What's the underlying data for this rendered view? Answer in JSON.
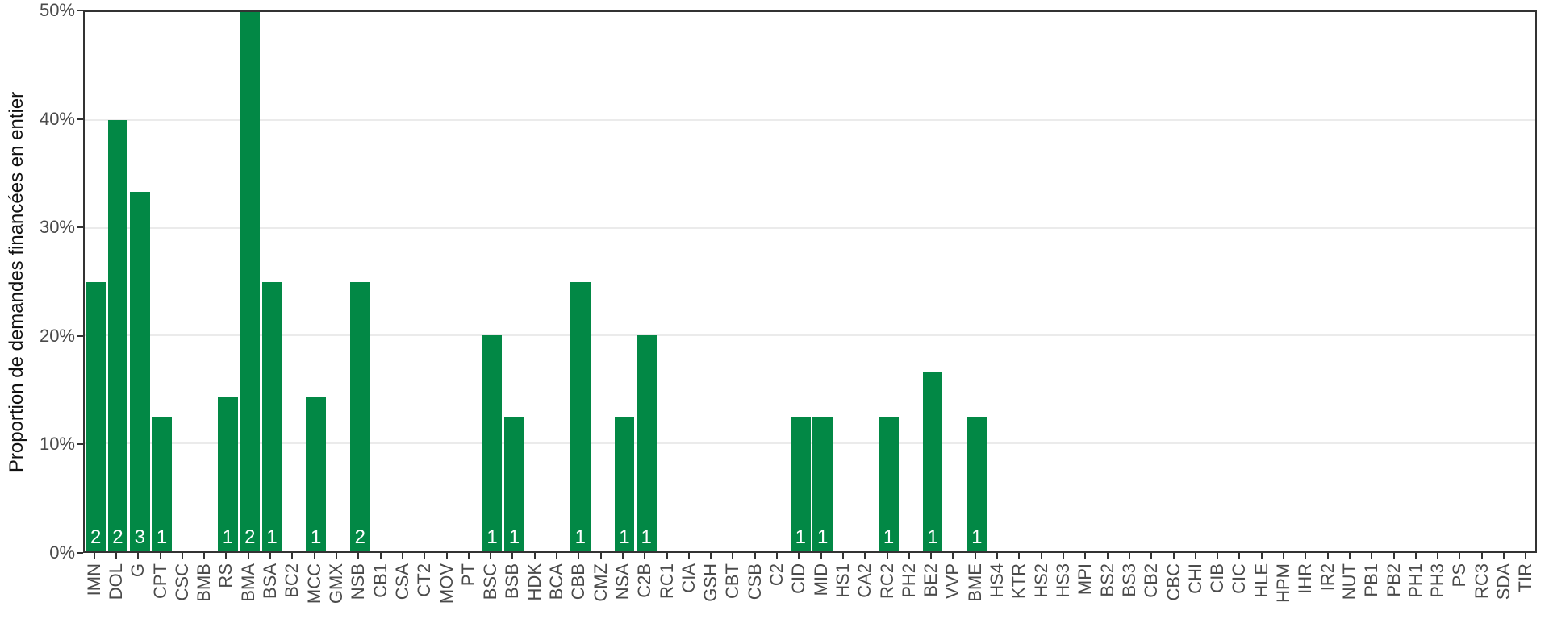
{
  "chart_data": {
    "type": "bar",
    "title": "",
    "xlabel": "",
    "ylabel": "Proportion de demandes financées en entier",
    "ylim": [
      0,
      50
    ],
    "y_tick_values": [
      0,
      10,
      20,
      30,
      40,
      50
    ],
    "y_tick_labels": [
      "0%",
      "10%",
      "20%",
      "30%",
      "40%",
      "50%"
    ],
    "grid": "horizontal-major-only",
    "legend_position": "none",
    "bar_color": "#028845",
    "categories": [
      "IMN",
      "DOL",
      "G",
      "CPT",
      "CSC",
      "BMB",
      "RS",
      "BMA",
      "BSA",
      "BC2",
      "MCC",
      "GMX",
      "NSB",
      "CB1",
      "CSA",
      "CT2",
      "MOV",
      "PT",
      "BSC",
      "BSB",
      "HDK",
      "BCA",
      "CBB",
      "CMZ",
      "NSA",
      "C2B",
      "RC1",
      "CIA",
      "GSH",
      "CBT",
      "CSB",
      "C2",
      "CID",
      "MID",
      "HS1",
      "CA2",
      "RC2",
      "PH2",
      "BE2",
      "VVP",
      "BME",
      "HS4",
      "KTR",
      "HS2",
      "HS3",
      "MPI",
      "BS2",
      "BS3",
      "CB2",
      "CBC",
      "CHI",
      "CIB",
      "CIC",
      "HLE",
      "HPM",
      "IHR",
      "IR2",
      "NUT",
      "PB1",
      "PB2",
      "PH1",
      "PH3",
      "PS",
      "RC3",
      "SDA",
      "TIR"
    ],
    "values": [
      25,
      40,
      33.33,
      12.5,
      0,
      0,
      14.29,
      50,
      25,
      0,
      14.29,
      0,
      25,
      0,
      0,
      0,
      0,
      0,
      20,
      12.5,
      0,
      0,
      25,
      0,
      12.5,
      20,
      0,
      0,
      0,
      0,
      0,
      0,
      12.5,
      12.5,
      0,
      0,
      12.5,
      0,
      16.67,
      0,
      12.5,
      0,
      0,
      0,
      0,
      0,
      0,
      0,
      0,
      0,
      0,
      0,
      0,
      0,
      0,
      0,
      0,
      0,
      0,
      0,
      0,
      0,
      0,
      0,
      0,
      0
    ],
    "bar_count_labels": [
      "2",
      "2",
      "3",
      "1",
      "",
      "",
      "1",
      "2",
      "1",
      "",
      "1",
      "",
      "2",
      "",
      "",
      "",
      "",
      "",
      "1",
      "1",
      "",
      "",
      "1",
      "",
      "1",
      "1",
      "",
      "",
      "",
      "",
      "",
      "",
      "1",
      "1",
      "",
      "",
      "1",
      "",
      "1",
      "",
      "1",
      "",
      "",
      "",
      "",
      "",
      "",
      "",
      "",
      "",
      "",
      "",
      "",
      "",
      "",
      "",
      "",
      "",
      "",
      "",
      "",
      "",
      "",
      "",
      "",
      ""
    ]
  },
  "colors": {
    "bar": "#028845",
    "bar_count_text": "#ffffff",
    "gridline": "#ebebeb",
    "axis_text": "#4a4a4a",
    "axis_title": "#111111",
    "panel_border": "#333333",
    "background": "#ffffff"
  }
}
